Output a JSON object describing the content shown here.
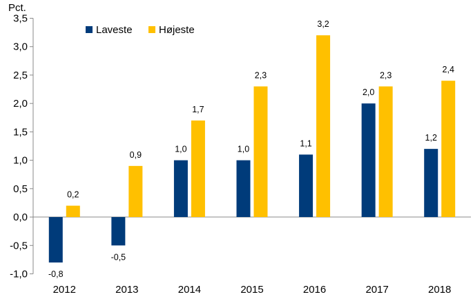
{
  "chart_data": {
    "type": "bar",
    "unit_label": "Pct.",
    "categories": [
      "2012",
      "2013",
      "2014",
      "2015",
      "2016",
      "2017",
      "2018"
    ],
    "series": [
      {
        "name": "Laveste",
        "color": "#003B7A",
        "values": [
          -0.8,
          -0.5,
          1.0,
          1.0,
          1.1,
          2.0,
          1.2
        ],
        "labels": [
          "-0,8",
          "-0,5",
          "1,0",
          "1,0",
          "1,1",
          "2,0",
          "1,2"
        ]
      },
      {
        "name": "Højeste",
        "color": "#FFC000",
        "values": [
          0.2,
          0.9,
          1.7,
          2.3,
          3.2,
          2.3,
          2.4
        ],
        "labels": [
          "0,2",
          "0,9",
          "1,7",
          "2,3",
          "3,2",
          "2,3",
          "2,4"
        ]
      }
    ],
    "ylim": [
      -1.0,
      3.5
    ],
    "yticks": [
      -1.0,
      -0.5,
      0.0,
      0.5,
      1.0,
      1.5,
      2.0,
      2.5,
      3.0,
      3.5
    ],
    "ytick_labels": [
      "-1,0",
      "-0,5",
      "0,0",
      "0,5",
      "1,0",
      "1,5",
      "2,0",
      "2,5",
      "3,0",
      "3,5"
    ],
    "legend_position": "top-left",
    "grid": false
  }
}
